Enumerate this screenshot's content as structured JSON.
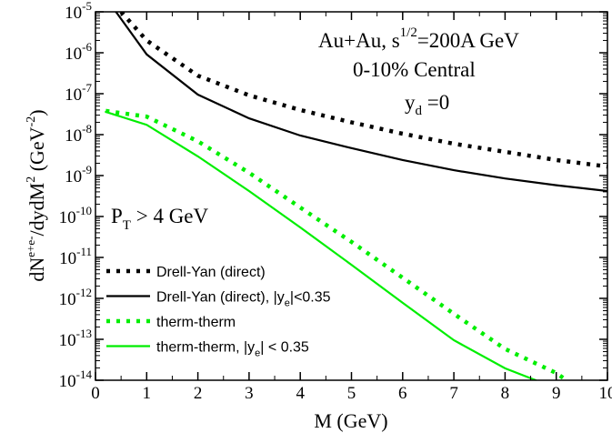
{
  "chart_data": {
    "type": "line",
    "xlabel": "M (GeV)",
    "ylabel": {
      "main": "dN",
      "sup": "e+e-",
      "rest": "/dydM",
      "sup2": "2",
      "unit": "(GeV",
      "unit_exp": "-2",
      "close": ")"
    },
    "annotations": {
      "system": {
        "text": "Au+Au, s",
        "sup": "1/2",
        "rest": "=200A GeV"
      },
      "centrality": "0-10% Central",
      "rapidity": {
        "text": "y",
        "sub": "d",
        "rest": " =0"
      },
      "pt_cut": {
        "text": "P",
        "sub": "T",
        "rest": " > 4 GeV"
      }
    },
    "xlim": [
      0,
      10
    ],
    "xticks": [
      0,
      1,
      2,
      3,
      4,
      5,
      6,
      7,
      8,
      9,
      10
    ],
    "ylim": [
      1e-14,
      1e-05
    ],
    "log_y": true,
    "yticks": [
      {
        "value": 1e-14,
        "label": "10",
        "exponent": "-14"
      },
      {
        "value": 1e-13,
        "label": "10",
        "exponent": "-13"
      },
      {
        "value": 1e-12,
        "label": "10",
        "exponent": "-12"
      },
      {
        "value": 1e-11,
        "label": "10",
        "exponent": "-11"
      },
      {
        "value": 1e-10,
        "label": "10",
        "exponent": "-10"
      },
      {
        "value": 1e-09,
        "label": "10",
        "exponent": "-9"
      },
      {
        "value": 1e-08,
        "label": "10",
        "exponent": "-8"
      },
      {
        "value": 1e-07,
        "label": "10",
        "exponent": "-7"
      },
      {
        "value": 1e-06,
        "label": "10",
        "exponent": "-6"
      },
      {
        "value": 1e-05,
        "label": "10",
        "exponent": "-5"
      }
    ],
    "legend": "lower left",
    "series": [
      {
        "name": "Drell-Yan (direct)",
        "color": "#000000",
        "style": "dotted",
        "x": [
          0.5,
          1,
          2,
          3,
          4,
          5,
          6,
          7,
          8,
          9,
          10
        ],
        "values": [
          1e-05,
          2e-06,
          2.75e-07,
          9.1e-08,
          4e-08,
          2e-08,
          1.05e-08,
          6e-09,
          3.8e-09,
          2.4e-09,
          1.66e-09
        ]
      },
      {
        "name": "Drell-Yan (direct),  |y",
        "name_sub": "e",
        "name_end": "|<0.35",
        "color": "#000000",
        "style": "solid",
        "x": [
          0.4,
          1,
          2,
          3,
          4,
          5,
          6,
          7,
          8,
          9,
          10
        ],
        "values": [
          1e-05,
          9.1e-07,
          9.5e-08,
          2.5e-08,
          9.5e-09,
          4.7e-09,
          2.4e-09,
          1.35e-09,
          8.5e-10,
          5.8e-10,
          4.2e-10
        ]
      },
      {
        "name": "therm-therm",
        "color": "#00ee00",
        "style": "dotted",
        "x": [
          0.2,
          1,
          2,
          3,
          4,
          5,
          6,
          7,
          8,
          9,
          9.2
        ],
        "values": [
          3.8e-08,
          2.75e-08,
          6.9e-09,
          1.17e-09,
          1.66e-10,
          2.4e-11,
          3.2e-12,
          4.2e-13,
          5.8e-14,
          1.5e-14,
          1e-14
        ]
      },
      {
        "name": "therm-therm,  |y",
        "name_sub": "e",
        "name_end": "| < 0.35",
        "color": "#00ee00",
        "style": "solid",
        "x": [
          0.2,
          1,
          2,
          3,
          4,
          5,
          6,
          7,
          8,
          8.6
        ],
        "values": [
          3.6e-08,
          1.74e-08,
          2.95e-09,
          4.2e-10,
          5.4e-11,
          6.6e-12,
          7.8e-13,
          9.5e-14,
          1.95e-14,
          1e-14
        ]
      }
    ]
  }
}
